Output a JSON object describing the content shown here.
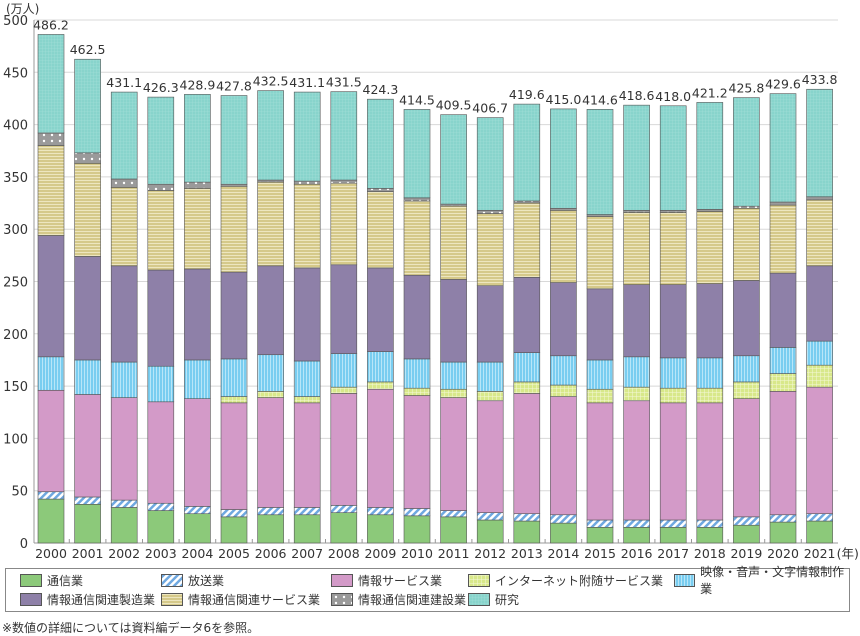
{
  "chart_data": {
    "type": "bar",
    "stacked": true,
    "unit_label": "(万人)",
    "x_unit": "(年)",
    "categories": [
      "2000",
      "2001",
      "2002",
      "2003",
      "2004",
      "2005",
      "2006",
      "2007",
      "2008",
      "2009",
      "2010",
      "2011",
      "2012",
      "2013",
      "2014",
      "2015",
      "2016",
      "2017",
      "2018",
      "2019",
      "2020",
      "2021"
    ],
    "ylim": [
      0,
      500
    ],
    "yticks": [
      0,
      50,
      100,
      150,
      200,
      250,
      300,
      350,
      400,
      450,
      500
    ],
    "grid": true,
    "legend_position": "bottom",
    "totals": [
      "486.2",
      "462.5",
      "431.1",
      "426.3",
      "428.9",
      "427.8",
      "432.5",
      "431.1",
      "431.5",
      "424.3",
      "414.5",
      "409.5",
      "406.7",
      "419.6",
      "415.0",
      "414.6",
      "418.6",
      "418.0",
      "421.2",
      "425.8",
      "429.6",
      "433.8"
    ],
    "series": [
      {
        "name": "通信業",
        "color": "#8cc97a",
        "pattern": "solid",
        "values": [
          42,
          37,
          34,
          31,
          28,
          25,
          27,
          27,
          29,
          27,
          26,
          25,
          22,
          21,
          19,
          15,
          15,
          15,
          15,
          17,
          20,
          21
        ]
      },
      {
        "name": "放送業",
        "color": "#6fa8e0",
        "pattern": "diagonal",
        "values": [
          7,
          7,
          7,
          7,
          7,
          7,
          7,
          7,
          7,
          7,
          7,
          6,
          7,
          7,
          8,
          7,
          7,
          7,
          7,
          8,
          7,
          7
        ]
      },
      {
        "name": "情報サービス業",
        "color": "#d39ac8",
        "pattern": "solid",
        "values": [
          97,
          98,
          98,
          97,
          103,
          102,
          105,
          100,
          107,
          113,
          108,
          108,
          107,
          115,
          113,
          112,
          114,
          112,
          112,
          113,
          118,
          121
        ]
      },
      {
        "name": "インターネット附随サービス業",
        "color": "#d8e88a",
        "pattern": "grid",
        "values": [
          0,
          0,
          0,
          0,
          0,
          6,
          6,
          6,
          6,
          7,
          7,
          8,
          9,
          11,
          11,
          13,
          13,
          14,
          14,
          16,
          17,
          21
        ]
      },
      {
        "name": "映像・音声・文字情報制作業",
        "color": "#79cdf0",
        "pattern": "vertical",
        "values": [
          32,
          33,
          34,
          34,
          37,
          36,
          35,
          34,
          32,
          29,
          28,
          26,
          28,
          28,
          28,
          28,
          29,
          29,
          29,
          25,
          25,
          23
        ]
      },
      {
        "name": "情報通信関連製造業",
        "color": "#8e80a8",
        "pattern": "solid",
        "values": [
          116,
          99,
          92,
          92,
          87,
          83,
          85,
          89,
          85,
          80,
          80,
          79,
          73,
          72,
          70,
          68,
          69,
          70,
          71,
          72,
          71,
          72
        ]
      },
      {
        "name": "情報通信関連サービス業",
        "color": "#d5c98a",
        "pattern": "horizontal",
        "values": [
          86,
          89,
          75,
          76,
          77,
          82,
          80,
          80,
          78,
          73,
          71,
          70,
          69,
          71,
          69,
          69,
          69,
          69,
          69,
          69,
          65,
          63
        ]
      },
      {
        "name": "情報通信関連建設業",
        "color": "#9a9a9a",
        "pattern": "dots",
        "values": [
          12,
          10,
          8,
          6,
          6,
          2,
          2,
          3,
          3,
          3,
          3,
          2,
          3,
          2,
          2,
          2,
          2,
          2,
          2,
          2,
          3,
          3
        ]
      },
      {
        "name": "研究",
        "color": "#88d4cc",
        "pattern": "fine-grid",
        "values": [
          94.2,
          89.5,
          83.1,
          83.3,
          83.9,
          84.8,
          85.5,
          85.1,
          84.5,
          85.3,
          84.5,
          85.5,
          88.7,
          92.6,
          95.0,
          100.6,
          100.6,
          100.0,
          102.2,
          103.8,
          103.6,
          102.8
        ]
      }
    ]
  },
  "footnote": "※数値の詳細については資料編データ6を参照。"
}
